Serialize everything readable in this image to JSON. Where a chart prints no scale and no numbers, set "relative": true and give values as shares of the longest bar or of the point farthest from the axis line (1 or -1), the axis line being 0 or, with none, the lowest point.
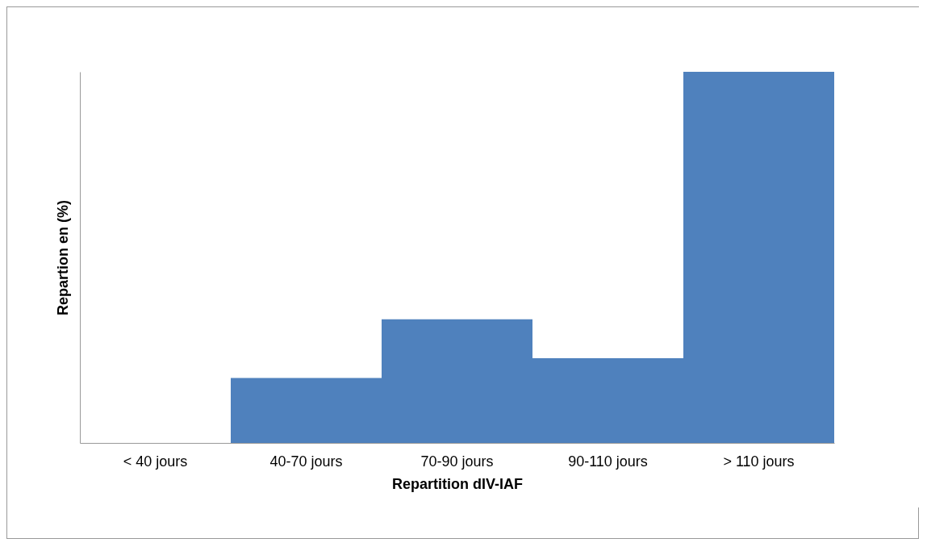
{
  "chart_data": {
    "type": "bar",
    "xlabel": "Repartition dIV-IAF",
    "ylabel": "Repartion en (%)",
    "categories": [
      "< 40 jours",
      "40-70 jours",
      "70-90 jours",
      "90-110 jours",
      "> 110 jours"
    ],
    "values": [
      0,
      0.175,
      0.333,
      0.228,
      1
    ],
    "color": "#4f81bd",
    "relative": true,
    "grid": false
  }
}
